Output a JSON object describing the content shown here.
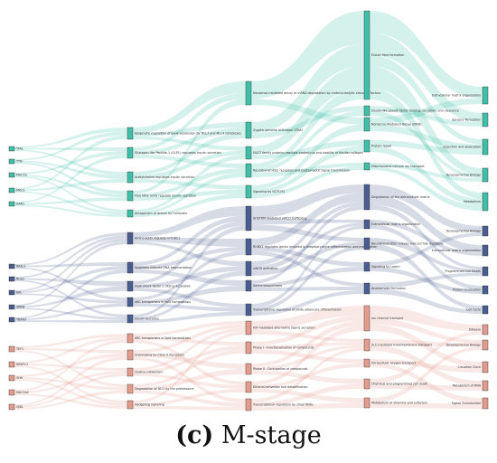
{
  "caption": {
    "panel": "(c)",
    "text": "M-stage"
  },
  "colors": {
    "teal": "#3fbfa8",
    "navy": "#4a5d8f",
    "salmon": "#e39b8e"
  },
  "columns": [
    [
      {
        "id": "A1",
        "label": "TFAL",
        "group": "teal"
      },
      {
        "id": "A2",
        "label": "TTN",
        "group": "teal"
      },
      {
        "id": "A3",
        "label": "MUC5S",
        "group": "teal"
      },
      {
        "id": "A4",
        "label": "MUC1",
        "group": "teal"
      },
      {
        "id": "A5",
        "label": "HAR1",
        "group": "teal"
      },
      {
        "id": "A6",
        "label": "RASL1",
        "group": "navy"
      },
      {
        "id": "A7",
        "label": "RGS2",
        "group": "navy"
      },
      {
        "id": "A8",
        "label": "NFL",
        "group": "navy"
      },
      {
        "id": "A9",
        "label": "SNRB",
        "group": "navy"
      },
      {
        "id": "A10",
        "label": "TBXN3",
        "group": "navy"
      },
      {
        "id": "A11",
        "label": "TEF1",
        "group": "salmon"
      },
      {
        "id": "A12",
        "label": "NRSFC1",
        "group": "salmon"
      },
      {
        "id": "A13",
        "label": "SHH",
        "group": "salmon"
      },
      {
        "id": "A14",
        "label": "MUC5AC",
        "group": "salmon"
      },
      {
        "id": "A15",
        "label": "GJB1",
        "group": "salmon"
      }
    ],
    [
      {
        "id": "B1",
        "label": "Epigenetic regulation of gene expression by MLL3 and MLL4 complexes",
        "group": "teal"
      },
      {
        "id": "B2",
        "label": "Glucagon-like Peptide-1 (GLP1) regulates insulin secretion",
        "group": "teal"
      },
      {
        "id": "B3",
        "label": "Acetylcholine regulates insulin secretion",
        "group": "teal"
      },
      {
        "id": "B4",
        "label": "Free fatty acids regulate insulin secretion",
        "group": "teal"
      },
      {
        "id": "B5",
        "label": "Antagonism of Activin by Follistatin",
        "group": "teal"
      },
      {
        "id": "B6",
        "label": "Amino acids regulate mTORC1",
        "group": "navy"
      },
      {
        "id": "B7",
        "label": "Apoptosis induced DNA fragmentation",
        "group": "navy"
      },
      {
        "id": "B8",
        "label": "Heat-shock factor 1 (HSF1) activation",
        "group": "navy"
      },
      {
        "id": "B9",
        "label": "ABC transporters in lipid homeostasis",
        "group": "navy"
      },
      {
        "id": "B10",
        "label": "Insulin secretion",
        "group": "navy"
      },
      {
        "id": "B11",
        "label": "ABC transporters in lipid homeostasis",
        "group": "salmon"
      },
      {
        "id": "B12",
        "label": "Scavenging by Class A Receptors",
        "group": "salmon"
      },
      {
        "id": "B13",
        "label": "Choline catabolism",
        "group": "salmon"
      },
      {
        "id": "B14",
        "label": "Degradation of GLI1 by the proteasome",
        "group": "salmon"
      },
      {
        "id": "B15",
        "label": "Hedgehog signaling",
        "group": "salmon"
      }
    ],
    [
      {
        "id": "C1",
        "label": "Nonsense-mediated decay of mRNA degradation by endonucleolytic cleavage factors",
        "group": "teal"
      },
      {
        "id": "C2",
        "label": "Zygotic genome activation (ZGA)",
        "group": "teal"
      },
      {
        "id": "C3",
        "label": "FACIT family proteins regulate proteolysis and stability of fibrillar collagen",
        "group": "teal"
      },
      {
        "id": "C4",
        "label": "Neurotransmitter receptors and postsynaptic signal transmission",
        "group": "teal"
      },
      {
        "id": "C5",
        "label": "Signaling by NOTCH3",
        "group": "teal"
      },
      {
        "id": "C6",
        "label": "SOSTRM mediated vWCD trafficking",
        "group": "navy"
      },
      {
        "id": "C7",
        "label": "RUNX1 regulates genes involved in megakaryocyte differentiation and proliferation",
        "group": "navy"
      },
      {
        "id": "C8",
        "label": "vWCD activation",
        "group": "navy"
      },
      {
        "id": "C9",
        "label": "Serine biosynthesis",
        "group": "navy"
      },
      {
        "id": "C10",
        "label": "Transcriptional regulation of white adipocyte differentiation",
        "group": "navy"
      },
      {
        "id": "C11",
        "label": "HIF-mediated alternative ligand secretion",
        "group": "salmon"
      },
      {
        "id": "C12",
        "label": "Phase I - Functionalization of compounds",
        "group": "salmon"
      },
      {
        "id": "C13",
        "label": "Phase II - Conjugation of compounds",
        "group": "salmon"
      },
      {
        "id": "C14",
        "label": "Ethanol activation and detoxification",
        "group": "salmon"
      },
      {
        "id": "C15",
        "label": "Transcriptional regulation by small RNAs",
        "group": "salmon"
      }
    ],
    [
      {
        "id": "D1",
        "label": "Elastic fibre formation",
        "group": "teal"
      },
      {
        "id": "D2",
        "label": "Insulin-like growth factor binding, secretion, and clearance",
        "group": "teal"
      },
      {
        "id": "D3",
        "label": "Nonsense-Mediated Decay (NMD)",
        "group": "teal"
      },
      {
        "id": "D4",
        "label": "Protein repair",
        "group": "teal"
      },
      {
        "id": "D5",
        "label": "Mitochondrial calcium ion transport",
        "group": "teal"
      },
      {
        "id": "D6",
        "label": "Degradation of the extracellular matrix",
        "group": "navy"
      },
      {
        "id": "D7",
        "label": "Extracellular matrix organization",
        "group": "navy"
      },
      {
        "id": "D8",
        "label": "Neurotransmitter release and cell fate decisions",
        "group": "navy"
      },
      {
        "id": "D9",
        "label": "Signaling by Leptin",
        "group": "navy"
      },
      {
        "id": "D10",
        "label": "Anastomosis formation",
        "group": "navy"
      },
      {
        "id": "D11",
        "label": "Ion channel transport",
        "group": "salmon"
      },
      {
        "id": "D12",
        "label": "SLC-mediated transmembrane transport",
        "group": "salmon"
      },
      {
        "id": "D13",
        "label": "Intracellular oxygen transport",
        "group": "salmon"
      },
      {
        "id": "D14",
        "label": "Chemical and programmed cell death",
        "group": "salmon"
      },
      {
        "id": "D15",
        "label": "Metabolism of vitamins and cofactors",
        "group": "salmon"
      }
    ],
    [
      {
        "id": "E1",
        "label": "Extracellular matrix organization",
        "group": "teal"
      },
      {
        "id": "E2",
        "label": "Sensory Perception",
        "group": "teal"
      },
      {
        "id": "E3",
        "label": "Digestion and absorption",
        "group": "teal"
      },
      {
        "id": "E4",
        "label": "Developmental Biology",
        "group": "teal"
      },
      {
        "id": "E5",
        "label": "Metabolism",
        "group": "teal"
      },
      {
        "id": "E6",
        "label": "Developmental Biology",
        "group": "navy"
      },
      {
        "id": "E7",
        "label": "Extracellular matrix organization",
        "group": "navy"
      },
      {
        "id": "E8",
        "label": "Programmed Cell Death",
        "group": "navy"
      },
      {
        "id": "E9",
        "label": "Protein localization",
        "group": "navy"
      },
      {
        "id": "E10",
        "label": "Cell Cycle",
        "group": "navy"
      },
      {
        "id": "E11",
        "label": "Disease",
        "group": "salmon"
      },
      {
        "id": "E12",
        "label": "Developmental Biology",
        "group": "salmon"
      },
      {
        "id": "E13",
        "label": "Circadian Clock",
        "group": "salmon"
      },
      {
        "id": "E14",
        "label": "Metabolism of RNA",
        "group": "salmon"
      },
      {
        "id": "E15",
        "label": "Signal Transduction",
        "group": "salmon"
      }
    ]
  ],
  "links": [
    [
      "A1",
      "B1",
      1
    ],
    [
      "A1",
      "B2",
      1
    ],
    [
      "A1",
      "B3",
      1
    ],
    [
      "A2",
      "B1",
      1
    ],
    [
      "A2",
      "B3",
      1
    ],
    [
      "A2",
      "B4",
      1
    ],
    [
      "A3",
      "B2",
      1
    ],
    [
      "A3",
      "B4",
      1
    ],
    [
      "A3",
      "B5",
      1
    ],
    [
      "A4",
      "B1",
      1
    ],
    [
      "A4",
      "B5",
      1
    ],
    [
      "A4",
      "B3",
      1
    ],
    [
      "A5",
      "B2",
      1
    ],
    [
      "A5",
      "B4",
      1
    ],
    [
      "A5",
      "B5",
      1
    ],
    [
      "A6",
      "B6",
      1
    ],
    [
      "A6",
      "B7",
      1
    ],
    [
      "A6",
      "B9",
      1
    ],
    [
      "A7",
      "B6",
      1
    ],
    [
      "A7",
      "B8",
      1
    ],
    [
      "A7",
      "B10",
      1
    ],
    [
      "A8",
      "B7",
      1
    ],
    [
      "A8",
      "B9",
      1
    ],
    [
      "A8",
      "B6",
      1
    ],
    [
      "A9",
      "B8",
      1
    ],
    [
      "A9",
      "B10",
      1
    ],
    [
      "A9",
      "B6",
      1
    ],
    [
      "A10",
      "B9",
      1
    ],
    [
      "A10",
      "B10",
      1
    ],
    [
      "A10",
      "B7",
      1
    ],
    [
      "A11",
      "B11",
      1
    ],
    [
      "A11",
      "B12",
      1
    ],
    [
      "A11",
      "B14",
      1
    ],
    [
      "A12",
      "B11",
      1
    ],
    [
      "A12",
      "B13",
      1
    ],
    [
      "A12",
      "B15",
      1
    ],
    [
      "A13",
      "B12",
      1
    ],
    [
      "A13",
      "B14",
      1
    ],
    [
      "A13",
      "B15",
      1
    ],
    [
      "A14",
      "B13",
      1
    ],
    [
      "A14",
      "B11",
      1
    ],
    [
      "A14",
      "B15",
      1
    ],
    [
      "A15",
      "B14",
      1
    ],
    [
      "A15",
      "B12",
      1
    ],
    [
      "A15",
      "B13",
      1
    ],
    [
      "B1",
      "C1",
      2
    ],
    [
      "B1",
      "C2",
      1
    ],
    [
      "B1",
      "C3",
      1
    ],
    [
      "B2",
      "C2",
      1
    ],
    [
      "B2",
      "C4",
      1
    ],
    [
      "B2",
      "C1",
      1
    ],
    [
      "B3",
      "C3",
      1
    ],
    [
      "B3",
      "C5",
      1
    ],
    [
      "B3",
      "C2",
      1
    ],
    [
      "B4",
      "C4",
      1
    ],
    [
      "B4",
      "C1",
      1
    ],
    [
      "B4",
      "C5",
      1
    ],
    [
      "B5",
      "C3",
      1
    ],
    [
      "B5",
      "C5",
      1
    ],
    [
      "B5",
      "C4",
      1
    ],
    [
      "B6",
      "C6",
      2
    ],
    [
      "B6",
      "C7",
      2
    ],
    [
      "B6",
      "C8",
      1
    ],
    [
      "B7",
      "C7",
      1
    ],
    [
      "B7",
      "C9",
      1
    ],
    [
      "B7",
      "C6",
      1
    ],
    [
      "B8",
      "C8",
      1
    ],
    [
      "B8",
      "C10",
      1
    ],
    [
      "B8",
      "C6",
      1
    ],
    [
      "B9",
      "C9",
      1
    ],
    [
      "B9",
      "C7",
      1
    ],
    [
      "B9",
      "C10",
      1
    ],
    [
      "B10",
      "C6",
      1
    ],
    [
      "B10",
      "C10",
      1
    ],
    [
      "B10",
      "C8",
      1
    ],
    [
      "B11",
      "C11",
      1
    ],
    [
      "B11",
      "C12",
      1
    ],
    [
      "B11",
      "C14",
      1
    ],
    [
      "B12",
      "C11",
      1
    ],
    [
      "B12",
      "C13",
      1
    ],
    [
      "B12",
      "C15",
      1
    ],
    [
      "B13",
      "C12",
      1
    ],
    [
      "B13",
      "C14",
      1
    ],
    [
      "B13",
      "C11",
      1
    ],
    [
      "B14",
      "C13",
      1
    ],
    [
      "B14",
      "C15",
      1
    ],
    [
      "B14",
      "C12",
      1
    ],
    [
      "B15",
      "C14",
      1
    ],
    [
      "B15",
      "C11",
      1
    ],
    [
      "B15",
      "C15",
      1
    ],
    [
      "C1",
      "D1",
      3
    ],
    [
      "C1",
      "D3",
      1
    ],
    [
      "C2",
      "D1",
      2
    ],
    [
      "C2",
      "D2",
      1
    ],
    [
      "C3",
      "D1",
      2
    ],
    [
      "C3",
      "D4",
      1
    ],
    [
      "C4",
      "D2",
      1
    ],
    [
      "C4",
      "D5",
      1
    ],
    [
      "C4",
      "D1",
      1
    ],
    [
      "C5",
      "D3",
      1
    ],
    [
      "C5",
      "D4",
      1
    ],
    [
      "C5",
      "D5",
      1
    ],
    [
      "C6",
      "D6",
      2
    ],
    [
      "C6",
      "D7",
      1
    ],
    [
      "C6",
      "D8",
      1
    ],
    [
      "C7",
      "D6",
      2
    ],
    [
      "C7",
      "D9",
      1
    ],
    [
      "C7",
      "D10",
      1
    ],
    [
      "C8",
      "D7",
      1
    ],
    [
      "C8",
      "D8",
      1
    ],
    [
      "C8",
      "D6",
      1
    ],
    [
      "C9",
      "D9",
      1
    ],
    [
      "C9",
      "D10",
      1
    ],
    [
      "C9",
      "D6",
      1
    ],
    [
      "C10",
      "D8",
      1
    ],
    [
      "C10",
      "D10",
      1
    ],
    [
      "C10",
      "D7",
      1
    ],
    [
      "C11",
      "D11",
      2
    ],
    [
      "C11",
      "D12",
      1
    ],
    [
      "C12",
      "D11",
      1
    ],
    [
      "C12",
      "D13",
      1
    ],
    [
      "C12",
      "D12",
      1
    ],
    [
      "C13",
      "D12",
      1
    ],
    [
      "C13",
      "D14",
      1
    ],
    [
      "C13",
      "D11",
      1
    ],
    [
      "C14",
      "D13",
      1
    ],
    [
      "C14",
      "D15",
      1
    ],
    [
      "C14",
      "D11",
      1
    ],
    [
      "C15",
      "D14",
      1
    ],
    [
      "C15",
      "D15",
      1
    ],
    [
      "C15",
      "D12",
      1
    ],
    [
      "D1",
      "E1",
      2
    ],
    [
      "D1",
      "E2",
      2
    ],
    [
      "D1",
      "E3",
      1
    ],
    [
      "D1",
      "E4",
      2
    ],
    [
      "D1",
      "E5",
      1
    ],
    [
      "D2",
      "E2",
      1
    ],
    [
      "D2",
      "E4",
      1
    ],
    [
      "D3",
      "E1",
      1
    ],
    [
      "D3",
      "E3",
      1
    ],
    [
      "D4",
      "E5",
      1
    ],
    [
      "D4",
      "E3",
      1
    ],
    [
      "D5",
      "E4",
      1
    ],
    [
      "D5",
      "E5",
      1
    ],
    [
      "D6",
      "E6",
      2
    ],
    [
      "D6",
      "E7",
      2
    ],
    [
      "D6",
      "E8",
      1
    ],
    [
      "D7",
      "E7",
      1
    ],
    [
      "D7",
      "E9",
      1
    ],
    [
      "D8",
      "E8",
      1
    ],
    [
      "D8",
      "E10",
      1
    ],
    [
      "D9",
      "E9",
      1
    ],
    [
      "D9",
      "E6",
      1
    ],
    [
      "D10",
      "E10",
      1
    ],
    [
      "D10",
      "E8",
      1
    ],
    [
      "D11",
      "E11",
      2
    ],
    [
      "D11",
      "E12",
      1
    ],
    [
      "D11",
      "E13",
      1
    ],
    [
      "D12",
      "E12",
      1
    ],
    [
      "D12",
      "E14",
      1
    ],
    [
      "D13",
      "E13",
      1
    ],
    [
      "D13",
      "E15",
      1
    ],
    [
      "D14",
      "E14",
      1
    ],
    [
      "D14",
      "E11",
      1
    ],
    [
      "D15",
      "E15",
      1
    ],
    [
      "D15",
      "E12",
      1
    ]
  ]
}
